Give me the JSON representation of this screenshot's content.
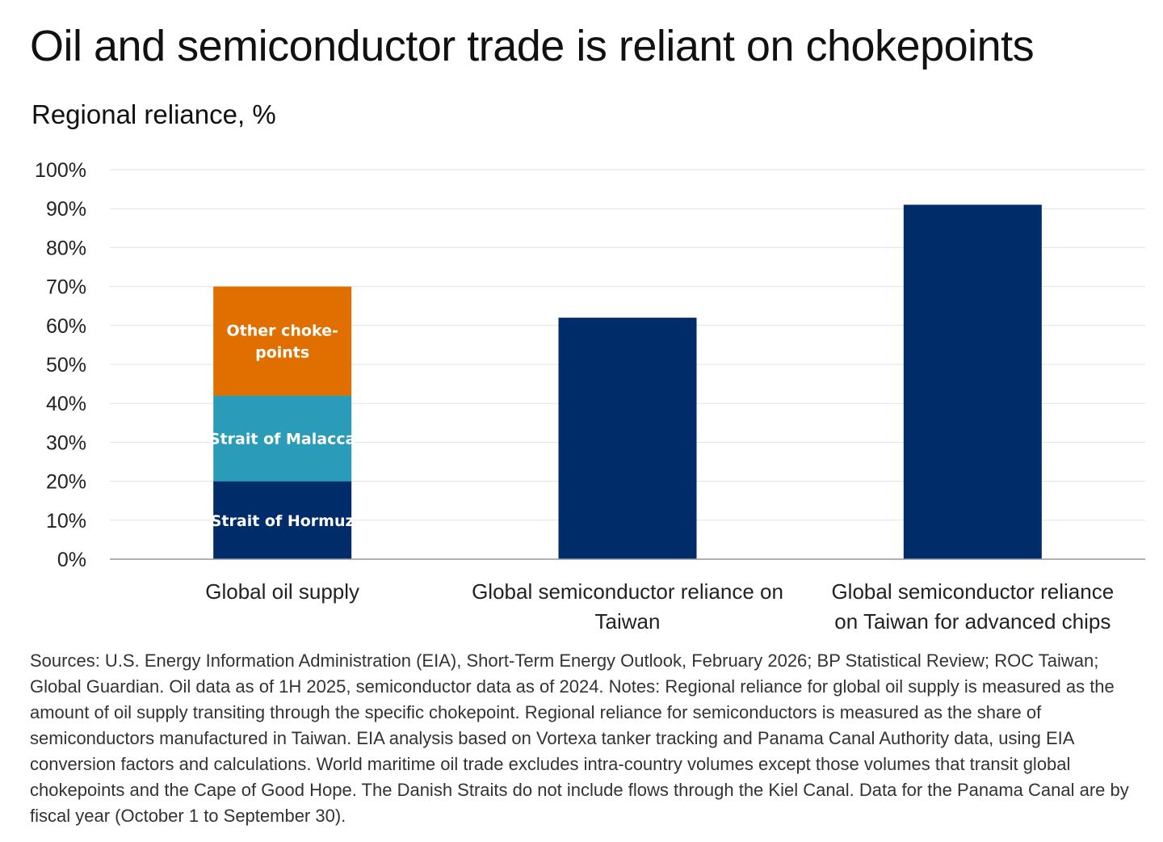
{
  "title": "Oil and semiconductor trade is reliant on chokepoints",
  "subtitle": "Regional reliance, %",
  "notes": "Sources: U.S. Energy Information Administration (EIA), Short-Term Energy Outlook, February 2026;  BP Statistical Review; ROC Taiwan; Global Guardian. Oil data as of 1H 2025, semiconductor data as of 2024. Notes: Regional reliance for global oil supply is measured as the amount of oil supply transiting through the specific chokepoint. Regional reliance for semiconductors is measured as the share of semiconductors manufactured in Taiwan. EIA analysis based on Vortexa tanker tracking and Panama Canal Authority data, using EIA conversion factors and calculations. World maritime oil trade excludes intra-country volumes except those volumes that transit global chokepoints and the Cape of Good Hope. The Danish Straits do not include flows through the Kiel Canal. Data for the Panama Canal are by fiscal year (October 1 to September 30).",
  "chart_data": {
    "type": "bar",
    "stacked": true,
    "ylabel": "Regional reliance, %",
    "ylim": [
      0,
      100
    ],
    "yticks": [
      "0%",
      "10%",
      "20%",
      "30%",
      "40%",
      "50%",
      "60%",
      "70%",
      "80%",
      "90%",
      "100%"
    ],
    "grid": true,
    "categories": [
      [
        "Global oil supply"
      ],
      [
        "Global semiconductor reliance on",
        "Taiwan"
      ],
      [
        "Global semiconductor reliance",
        "on Taiwan for advanced chips"
      ]
    ],
    "series": [
      {
        "name": "Strait of Hormuz",
        "label": [
          "Strait of Hormuz"
        ],
        "color": "#002c6a",
        "values": [
          20,
          62,
          91
        ]
      },
      {
        "name": "Strait of Malacca",
        "label": [
          "Strait of Malacca"
        ],
        "color": "#2a9bb8",
        "values": [
          22,
          0,
          0
        ]
      },
      {
        "name": "Other chokepoints",
        "label": [
          "Other choke-",
          "points"
        ],
        "color": "#e06f00",
        "values": [
          28,
          0,
          0
        ]
      }
    ]
  }
}
